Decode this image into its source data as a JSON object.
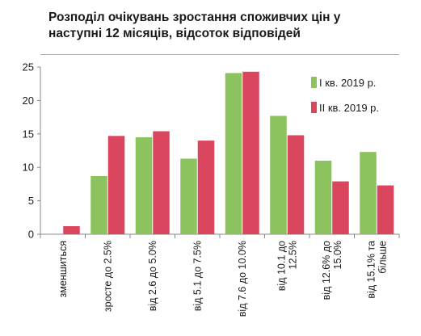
{
  "chart_data": {
    "type": "bar",
    "title": "Розподіл очікувань зростання споживчих цін у наступні 12 місяців, відсоток відповідей",
    "categories": [
      [
        "зменшиться"
      ],
      [
        "зросте до 2.5%"
      ],
      [
        "від 2.6 до 5.0%"
      ],
      [
        "від 5.1 до 7.5%"
      ],
      [
        "від 7.6 до 10.0%"
      ],
      [
        "від 10.1 до",
        "12.5%"
      ],
      [
        "від 12.6% до",
        "15.0%"
      ],
      [
        "від 15.1% та",
        "більше"
      ]
    ],
    "series": [
      {
        "name": "І кв. 2019 р.",
        "color": "#8cc35e",
        "values": [
          0,
          8.7,
          14.5,
          11.3,
          24.1,
          17.7,
          11.0,
          12.3
        ]
      },
      {
        "name": "ІІ кв. 2019 р.",
        "color": "#d9465e",
        "values": [
          1.2,
          14.7,
          15.4,
          14.0,
          24.3,
          14.8,
          7.9,
          7.3
        ]
      }
    ],
    "yticks": [
      "0",
      "5",
      "10",
      "15",
      "20",
      "25"
    ],
    "ylim": [
      0,
      25
    ],
    "legend_position": "top-right",
    "grid": false
  }
}
